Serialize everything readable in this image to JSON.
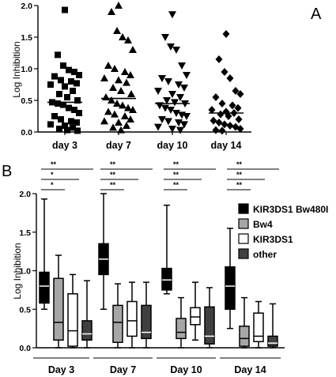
{
  "chart_data": [
    {
      "panel": "A",
      "type": "scatter",
      "ylabel": "Log Inhibition",
      "ylim": [
        0,
        2.0
      ],
      "yticks": [
        "0.0",
        "0.5",
        "1.0",
        "1.5",
        "2.0"
      ],
      "categories": [
        "day 3",
        "day 7",
        "day 10",
        "day 14"
      ],
      "series": [
        {
          "category": "day 3",
          "marker": "square",
          "median": 0.47,
          "values": [
            1.93,
            1.22,
            1.05,
            0.98,
            0.95,
            0.9,
            0.88,
            0.82,
            0.8,
            0.77,
            0.75,
            0.72,
            0.65,
            0.6,
            0.55,
            0.5,
            0.47,
            0.45,
            0.43,
            0.38,
            0.35,
            0.3,
            0.25,
            0.2,
            0.17,
            0.15,
            0.12,
            0.1,
            0.07,
            0.05,
            0.03,
            0.02
          ]
        },
        {
          "category": "day 7",
          "marker": "triangle-up",
          "median": 0.53,
          "values": [
            2.0,
            1.9,
            1.6,
            1.5,
            1.45,
            1.3,
            1.05,
            1.0,
            0.95,
            0.9,
            0.85,
            0.82,
            0.78,
            0.7,
            0.65,
            0.6,
            0.55,
            0.5,
            0.45,
            0.42,
            0.38,
            0.35,
            0.32,
            0.28,
            0.25,
            0.2,
            0.17,
            0.15,
            0.1,
            0.07,
            0.03
          ]
        },
        {
          "category": "day 10",
          "marker": "triangle-down",
          "median": 0.45,
          "values": [
            1.86,
            1.5,
            1.35,
            1.3,
            1.05,
            0.9,
            0.85,
            0.8,
            0.75,
            0.7,
            0.65,
            0.6,
            0.55,
            0.5,
            0.47,
            0.45,
            0.42,
            0.38,
            0.35,
            0.3,
            0.27,
            0.25,
            0.2,
            0.17,
            0.15,
            0.12,
            0.08,
            0.05,
            0.03
          ]
        },
        {
          "category": "day 14",
          "marker": "diamond",
          "median": 0.3,
          "values": [
            1.55,
            1.15,
            0.95,
            0.85,
            0.65,
            0.6,
            0.55,
            0.45,
            0.42,
            0.38,
            0.35,
            0.32,
            0.3,
            0.28,
            0.25,
            0.2,
            0.18,
            0.15,
            0.12,
            0.1,
            0.08,
            0.05,
            0.03,
            0.02
          ]
        }
      ]
    },
    {
      "panel": "B",
      "type": "box",
      "ylabel": "Log Inhibition",
      "ylim": [
        0,
        2.0
      ],
      "yticks": [
        "0.0",
        "0.5",
        "1.0",
        "1.5",
        "2.0"
      ],
      "categories": [
        "Day 3",
        "Day 7",
        "Day 10",
        "Day 14"
      ],
      "legend_position": "top-right",
      "series": [
        {
          "name": "KIR3DS1 Bw480I",
          "color": "#000000",
          "boxes": [
            {
              "min": 0.5,
              "q1": 0.58,
              "median": 0.8,
              "q3": 0.98,
              "max": 1.93
            },
            {
              "min": 0.5,
              "q1": 0.95,
              "median": 1.15,
              "q3": 1.35,
              "max": 2.0
            },
            {
              "min": 0.7,
              "q1": 0.75,
              "median": 0.88,
              "q3": 1.03,
              "max": 1.85
            },
            {
              "min": 0.25,
              "q1": 0.5,
              "median": 0.8,
              "q3": 1.05,
              "max": 1.55
            }
          ]
        },
        {
          "name": "Bw4",
          "color": "#a6a6a6",
          "boxes": [
            {
              "min": 0.0,
              "q1": 0.1,
              "median": 0.33,
              "q3": 0.9,
              "max": 1.2
            },
            {
              "min": 0.0,
              "q1": 0.07,
              "median": 0.33,
              "q3": 0.55,
              "max": 0.83
            },
            {
              "min": 0.0,
              "q1": 0.12,
              "median": 0.2,
              "q3": 0.38,
              "max": 0.65
            },
            {
              "min": 0.0,
              "q1": 0.02,
              "median": 0.12,
              "q3": 0.28,
              "max": 0.65
            }
          ]
        },
        {
          "name": "KIR3DS1",
          "color": "#ffffff",
          "boxes": [
            {
              "min": 0.0,
              "q1": 0.02,
              "median": 0.22,
              "q3": 0.7,
              "max": 0.95
            },
            {
              "min": 0.0,
              "q1": 0.15,
              "median": 0.35,
              "q3": 0.6,
              "max": 0.85
            },
            {
              "min": 0.1,
              "q1": 0.3,
              "median": 0.4,
              "q3": 0.52,
              "max": 0.85
            },
            {
              "min": 0.0,
              "q1": 0.08,
              "median": 0.15,
              "q3": 0.45,
              "max": 0.6
            }
          ]
        },
        {
          "name": "other",
          "color": "#404040",
          "boxes": [
            {
              "min": 0.0,
              "q1": 0.1,
              "median": 0.18,
              "q3": 0.35,
              "max": 0.87
            },
            {
              "min": 0.0,
              "q1": 0.12,
              "median": 0.2,
              "q3": 0.55,
              "max": 0.85
            },
            {
              "min": 0.0,
              "q1": 0.05,
              "median": 0.15,
              "q3": 0.53,
              "max": 0.78
            },
            {
              "min": 0.0,
              "q1": 0.02,
              "median": 0.06,
              "q3": 0.15,
              "max": 0.57
            }
          ]
        }
      ],
      "significance": [
        {
          "category": "Day 3",
          "labels": [
            "**",
            "*",
            "*"
          ]
        },
        {
          "category": "Day 7",
          "labels": [
            "**",
            "**",
            "**"
          ]
        },
        {
          "category": "Day 10",
          "labels": [
            "**",
            "**",
            "**"
          ]
        },
        {
          "category": "Day 14",
          "labels": [
            "**",
            "**",
            "**"
          ]
        }
      ]
    }
  ]
}
